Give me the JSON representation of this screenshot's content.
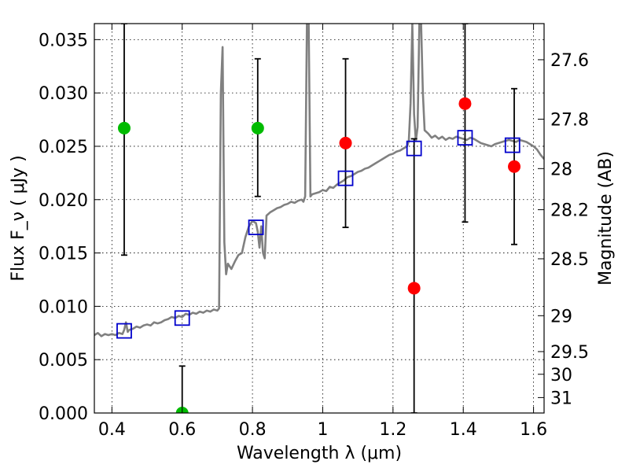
{
  "chart_data": {
    "type": "scatter",
    "title": "",
    "xlabel": "Wavelength  λ (μm)",
    "ylabel": "Flux  F_ν  ( μJy )",
    "ylabel_right": "Magnitude (AB)",
    "xlim": [
      0.35,
      1.63
    ],
    "ylim": [
      0.0,
      0.0365
    ],
    "x_ticks": [
      0.4,
      0.6,
      0.8,
      1.0,
      1.2,
      1.4,
      1.6
    ],
    "x_tick_labels": [
      "0.4",
      "0.6",
      "0.8",
      "1",
      "1.2",
      "1.4",
      "1.6"
    ],
    "y_ticks": [
      0.0,
      0.005,
      0.01,
      0.015,
      0.02,
      0.025,
      0.03,
      0.035
    ],
    "y_tick_labels": [
      "0.000",
      "0.005",
      "0.010",
      "0.015",
      "0.020",
      "0.025",
      "0.030",
      "0.035"
    ],
    "right_ticks": [
      27.6,
      27.8,
      28.0,
      28.2,
      28.5,
      29.0,
      29.5,
      30.0,
      31.0
    ],
    "right_tick_labels": [
      "27.6",
      "27.8",
      "28",
      "28.2",
      "28.5",
      "29",
      "29.5",
      "30",
      "31"
    ],
    "grid": true,
    "colors": {
      "model": "#808080",
      "model_photometry": "#0000cc",
      "upper": "#00bb00",
      "detection": "#ff0000",
      "errorbar": "#000000"
    },
    "series": [
      {
        "kind": "line",
        "points": [
          [
            0.35,
            0.0073
          ],
          [
            0.36,
            0.0075
          ],
          [
            0.37,
            0.0072
          ],
          [
            0.38,
            0.0074
          ],
          [
            0.39,
            0.0073
          ],
          [
            0.4,
            0.0074
          ],
          [
            0.41,
            0.0073
          ],
          [
            0.42,
            0.0075
          ],
          [
            0.43,
            0.0074
          ],
          [
            0.435,
            0.0078
          ],
          [
            0.44,
            0.0085
          ],
          [
            0.445,
            0.0076
          ],
          [
            0.45,
            0.0078
          ],
          [
            0.46,
            0.0079
          ],
          [
            0.47,
            0.0081
          ],
          [
            0.48,
            0.008
          ],
          [
            0.49,
            0.0082
          ],
          [
            0.5,
            0.0083
          ],
          [
            0.51,
            0.0082
          ],
          [
            0.52,
            0.0085
          ],
          [
            0.53,
            0.0084
          ],
          [
            0.54,
            0.0085
          ],
          [
            0.55,
            0.0087
          ],
          [
            0.56,
            0.0088
          ],
          [
            0.57,
            0.009
          ],
          [
            0.58,
            0.0089
          ],
          [
            0.59,
            0.0091
          ],
          [
            0.6,
            0.009
          ],
          [
            0.61,
            0.0093
          ],
          [
            0.62,
            0.0092
          ],
          [
            0.63,
            0.0094
          ],
          [
            0.64,
            0.0093
          ],
          [
            0.65,
            0.0095
          ],
          [
            0.66,
            0.0094
          ],
          [
            0.67,
            0.0096
          ],
          [
            0.68,
            0.0095
          ],
          [
            0.69,
            0.0097
          ],
          [
            0.7,
            0.0096
          ],
          [
            0.705,
            0.0098
          ],
          [
            0.71,
            0.03
          ],
          [
            0.715,
            0.0343
          ],
          [
            0.72,
            0.016
          ],
          [
            0.725,
            0.013
          ],
          [
            0.73,
            0.014
          ],
          [
            0.74,
            0.0135
          ],
          [
            0.75,
            0.0142
          ],
          [
            0.76,
            0.0148
          ],
          [
            0.77,
            0.015
          ],
          [
            0.78,
            0.0165
          ],
          [
            0.785,
            0.017
          ],
          [
            0.79,
            0.0175
          ],
          [
            0.8,
            0.018
          ],
          [
            0.81,
            0.0178
          ],
          [
            0.815,
            0.017
          ],
          [
            0.82,
            0.0155
          ],
          [
            0.825,
            0.0175
          ],
          [
            0.83,
            0.015
          ],
          [
            0.835,
            0.0145
          ],
          [
            0.84,
            0.0185
          ],
          [
            0.85,
            0.0188
          ],
          [
            0.86,
            0.019
          ],
          [
            0.87,
            0.0192
          ],
          [
            0.88,
            0.0193
          ],
          [
            0.89,
            0.0195
          ],
          [
            0.9,
            0.0196
          ],
          [
            0.91,
            0.0198
          ],
          [
            0.92,
            0.0197
          ],
          [
            0.93,
            0.0199
          ],
          [
            0.94,
            0.02
          ],
          [
            0.945,
            0.0198
          ],
          [
            0.95,
            0.0203
          ],
          [
            0.955,
            0.0365
          ],
          [
            0.96,
            0.0365
          ],
          [
            0.965,
            0.0203
          ],
          [
            0.97,
            0.0205
          ],
          [
            0.98,
            0.0206
          ],
          [
            0.99,
            0.0207
          ],
          [
            1.0,
            0.0209
          ],
          [
            1.01,
            0.0208
          ],
          [
            1.02,
            0.0212
          ],
          [
            1.03,
            0.0211
          ],
          [
            1.04,
            0.0214
          ],
          [
            1.05,
            0.0216
          ],
          [
            1.06,
            0.0218
          ],
          [
            1.07,
            0.0221
          ],
          [
            1.08,
            0.0222
          ],
          [
            1.09,
            0.0224
          ],
          [
            1.1,
            0.0226
          ],
          [
            1.11,
            0.0227
          ],
          [
            1.12,
            0.0229
          ],
          [
            1.13,
            0.023
          ],
          [
            1.14,
            0.0232
          ],
          [
            1.15,
            0.0234
          ],
          [
            1.16,
            0.0236
          ],
          [
            1.17,
            0.0238
          ],
          [
            1.18,
            0.024
          ],
          [
            1.19,
            0.0242
          ],
          [
            1.2,
            0.0243
          ],
          [
            1.21,
            0.0245
          ],
          [
            1.22,
            0.0246
          ],
          [
            1.23,
            0.0248
          ],
          [
            1.24,
            0.025
          ],
          [
            1.245,
            0.0255
          ],
          [
            1.25,
            0.029
          ],
          [
            1.255,
            0.0365
          ],
          [
            1.26,
            0.028
          ],
          [
            1.265,
            0.0255
          ],
          [
            1.27,
            0.0268
          ],
          [
            1.275,
            0.0365
          ],
          [
            1.28,
            0.0365
          ],
          [
            1.285,
            0.03
          ],
          [
            1.29,
            0.0265
          ],
          [
            1.3,
            0.0262
          ],
          [
            1.31,
            0.0258
          ],
          [
            1.32,
            0.026
          ],
          [
            1.33,
            0.0257
          ],
          [
            1.34,
            0.0259
          ],
          [
            1.35,
            0.0256
          ],
          [
            1.36,
            0.0258
          ],
          [
            1.37,
            0.0257
          ],
          [
            1.38,
            0.0259
          ],
          [
            1.39,
            0.0258
          ],
          [
            1.4,
            0.0257
          ],
          [
            1.41,
            0.0256
          ],
          [
            1.42,
            0.0258
          ],
          [
            1.43,
            0.0257
          ],
          [
            1.44,
            0.0255
          ],
          [
            1.45,
            0.0253
          ],
          [
            1.46,
            0.0252
          ],
          [
            1.47,
            0.0251
          ],
          [
            1.48,
            0.025
          ],
          [
            1.49,
            0.0252
          ],
          [
            1.5,
            0.0253
          ],
          [
            1.51,
            0.0254
          ],
          [
            1.52,
            0.0255
          ],
          [
            1.53,
            0.0256
          ],
          [
            1.54,
            0.0255
          ],
          [
            1.55,
            0.0254
          ],
          [
            1.56,
            0.0256
          ],
          [
            1.57,
            0.0255
          ],
          [
            1.58,
            0.0254
          ],
          [
            1.59,
            0.0252
          ],
          [
            1.6,
            0.025
          ],
          [
            1.61,
            0.0247
          ],
          [
            1.62,
            0.0242
          ],
          [
            1.63,
            0.0238
          ]
        ]
      },
      {
        "kind": "open-square",
        "points": [
          [
            0.435,
            0.0077
          ],
          [
            0.6,
            0.0089
          ],
          [
            0.81,
            0.0174
          ],
          [
            1.065,
            0.022
          ],
          [
            1.26,
            0.0248
          ],
          [
            1.405,
            0.0258
          ],
          [
            1.54,
            0.0251
          ]
        ]
      },
      {
        "kind": "filled-circle-green",
        "points": [
          [
            0.435,
            0.0267
          ],
          [
            0.6,
            0.0
          ],
          [
            0.815,
            0.0267
          ]
        ],
        "error_bars": [
          [
            0.0148,
            0.0365
          ],
          [
            0.0,
            0.0044
          ],
          [
            0.0203,
            0.0332
          ]
        ]
      },
      {
        "kind": "filled-circle-red",
        "points": [
          [
            1.065,
            0.0253
          ],
          [
            1.26,
            0.0117
          ],
          [
            1.405,
            0.029
          ],
          [
            1.545,
            0.0231
          ]
        ],
        "error_bars": [
          [
            0.0174,
            0.0332
          ],
          [
            0.0,
            0.0257
          ],
          [
            0.0179,
            0.0365
          ],
          [
            0.0158,
            0.0304
          ]
        ]
      }
    ]
  }
}
